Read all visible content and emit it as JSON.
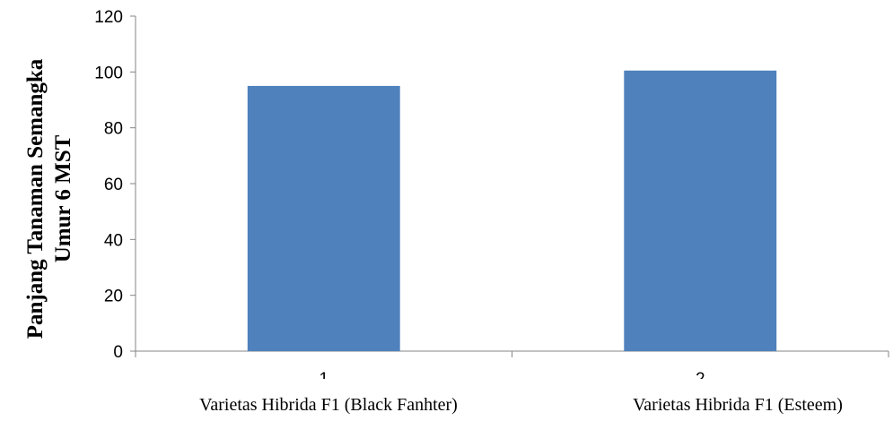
{
  "chart_data": {
    "type": "bar",
    "categories": [
      "1",
      "2"
    ],
    "values": [
      95,
      100.5
    ],
    "category_captions": [
      "Varietas Hibrida F1 (Black Fanhter)",
      "Varietas Hibrida F1 (Esteem)"
    ],
    "ylabel_lines": [
      "Panjang Tanaman Semangka",
      "Umur 6 MST"
    ],
    "xlabel": "",
    "ylim": [
      0,
      120
    ],
    "yticks": [
      0,
      20,
      40,
      60,
      80,
      100,
      120
    ],
    "bar_color": "#4f81bd",
    "grid": false,
    "legend": false
  }
}
